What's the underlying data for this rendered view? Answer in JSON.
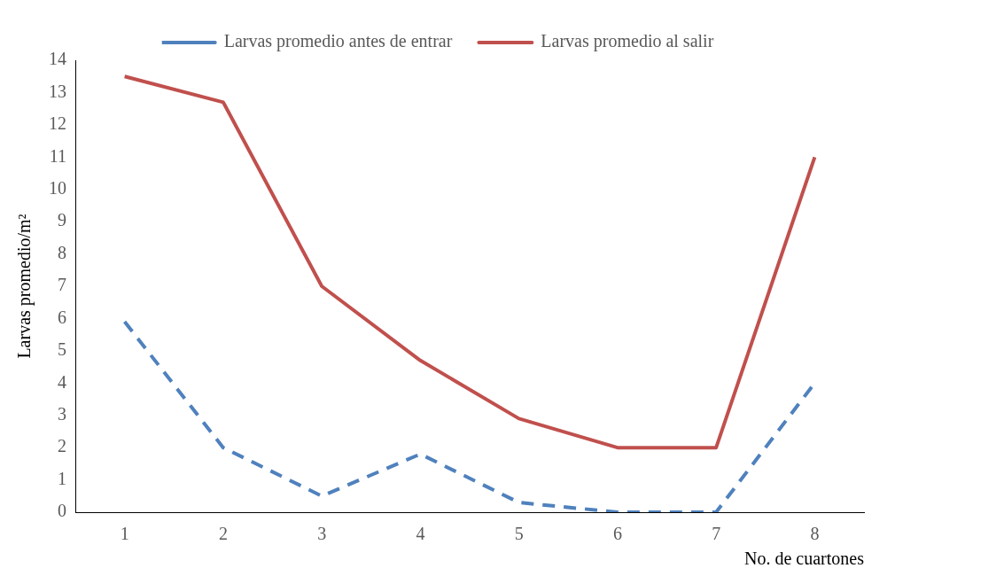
{
  "chart_data": {
    "type": "line",
    "xlabel": "No. de cuartones",
    "ylabel": "Larvas promedio/m²",
    "categories": [
      "1",
      "2",
      "3",
      "4",
      "5",
      "6",
      "7",
      "8"
    ],
    "series": [
      {
        "name": "Larvas promedio antes de entrar",
        "color": "#4f81bd",
        "line_style": "dashed",
        "values": [
          5.9,
          2.0,
          0.5,
          1.8,
          0.3,
          0,
          0,
          4.0
        ]
      },
      {
        "name": "Larvas promedio al salir",
        "color": "#c0504d",
        "line_style": "solid",
        "values": [
          13.5,
          12.7,
          7.0,
          4.7,
          2.9,
          2.0,
          2.0,
          11.0
        ]
      }
    ],
    "ylim": [
      0,
      14
    ],
    "yticks": [
      0,
      1,
      2,
      3,
      4,
      5,
      6,
      7,
      8,
      9,
      10,
      11,
      12,
      13,
      14
    ],
    "grid": false,
    "legend": "top",
    "marker": "none"
  }
}
